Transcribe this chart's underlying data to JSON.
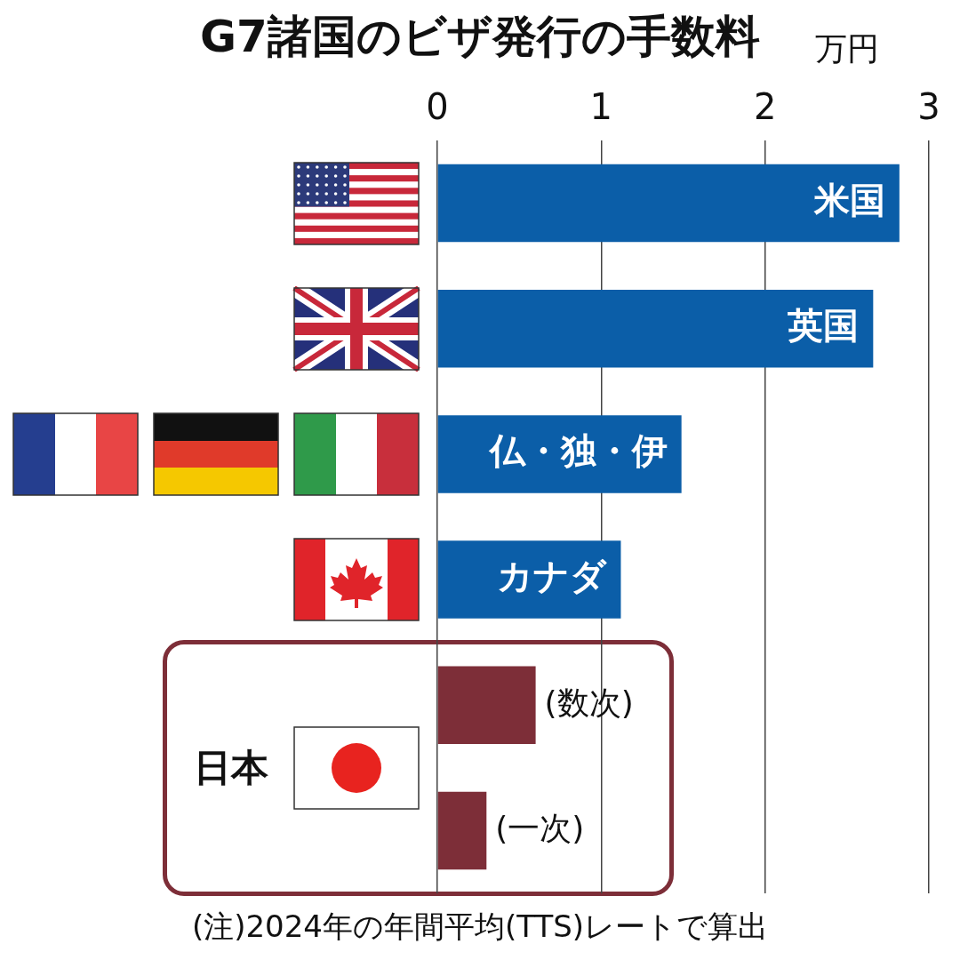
{
  "chart_data": {
    "type": "bar",
    "orientation": "horizontal",
    "title": "G7諸国のビザ発行の手数料",
    "xlabel": "万円",
    "categories": [
      "米国",
      "英国",
      "仏・独・伊",
      "カナダ",
      "(数次)",
      "(一次)"
    ],
    "values": [
      2.82,
      2.66,
      1.49,
      1.12,
      0.6,
      0.3
    ],
    "colors": [
      "#0b5ea8",
      "#0b5ea8",
      "#0b5ea8",
      "#0b5ea8",
      "#7d2e38",
      "#7d2e38"
    ],
    "xlim": [
      0,
      3
    ],
    "xticks": [
      0,
      1,
      2,
      3
    ],
    "grid": "x",
    "annotations": [
      "日本",
      "(注)2024年の年間平均(TTS)レートで算出"
    ]
  }
}
